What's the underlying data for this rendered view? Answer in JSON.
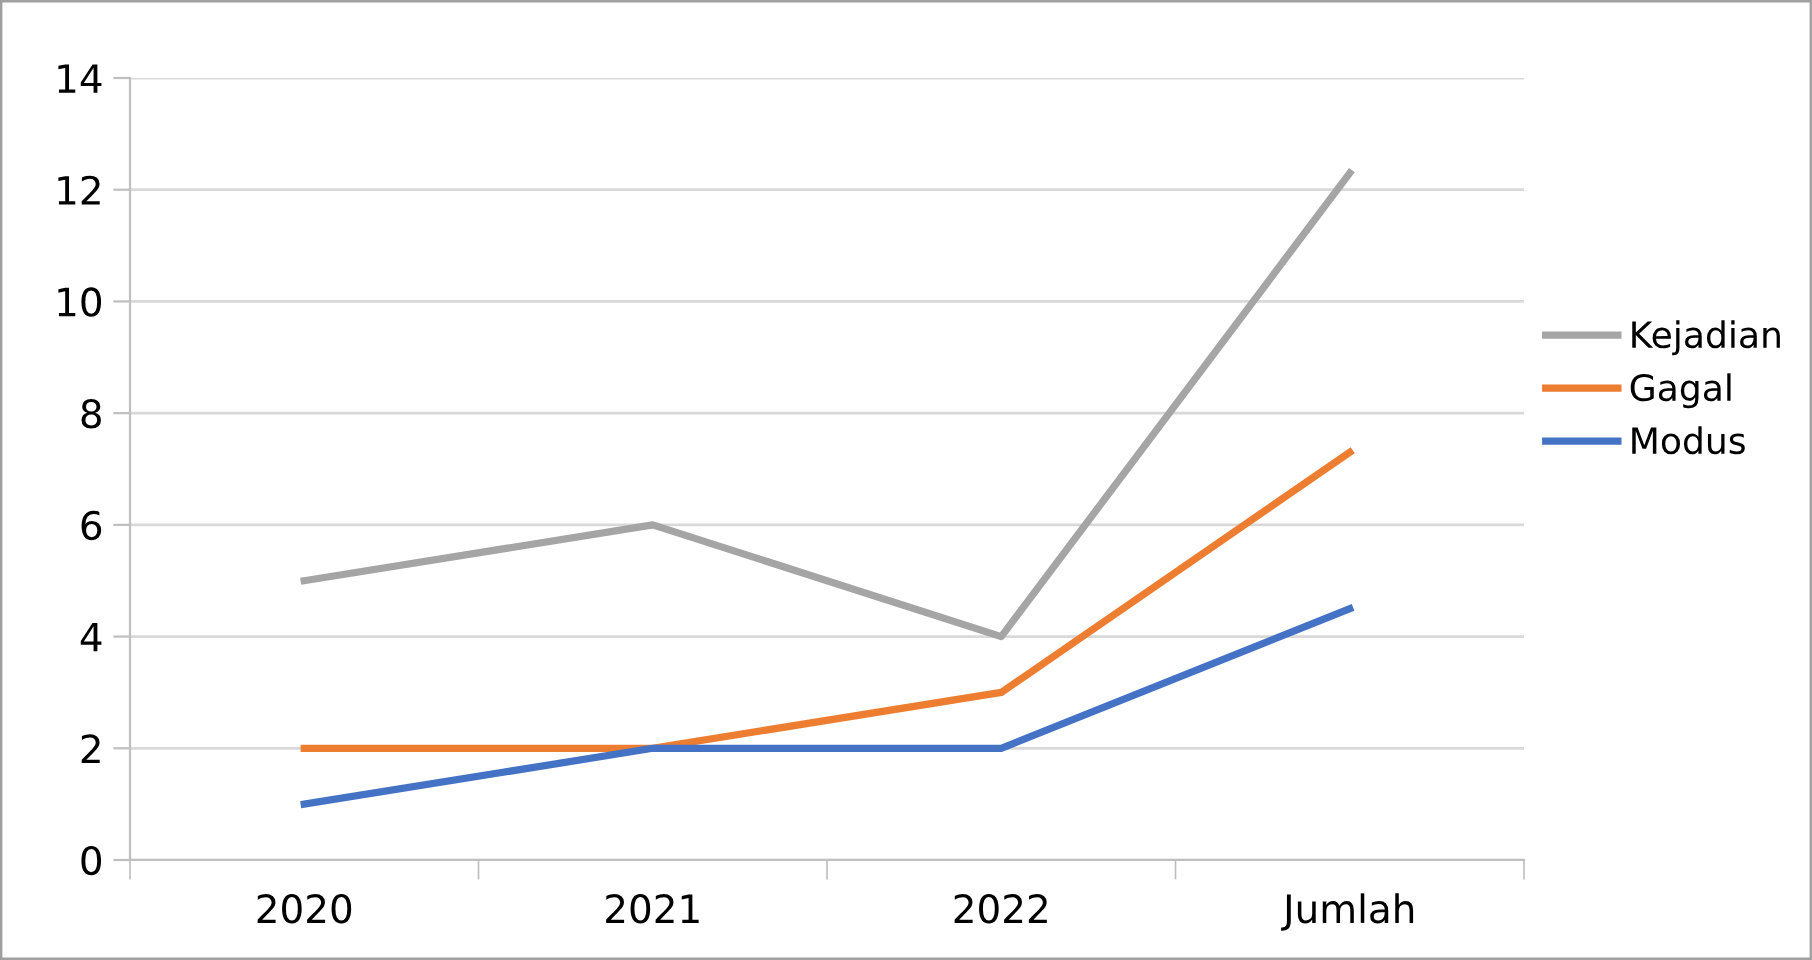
{
  "chart_data": {
    "type": "line",
    "categories": [
      "2020",
      "2021",
      "2022",
      "Jumlah"
    ],
    "series": [
      {
        "name": "Kejadian",
        "color": "#a5a5a5",
        "values": [
          5,
          6,
          4,
          12.3
        ]
      },
      {
        "name": "Gagal",
        "color": "#ed7d31",
        "values": [
          2,
          2,
          3,
          7.3
        ]
      },
      {
        "name": "Modus",
        "color": "#4472c4",
        "values": [
          1,
          2,
          2,
          4.5
        ]
      }
    ],
    "ylim": [
      0,
      14
    ],
    "yticks": [
      0,
      2,
      4,
      6,
      8,
      10,
      12,
      14
    ],
    "grid": "y",
    "legend": "right",
    "marker": "none",
    "line_style": "solid"
  }
}
